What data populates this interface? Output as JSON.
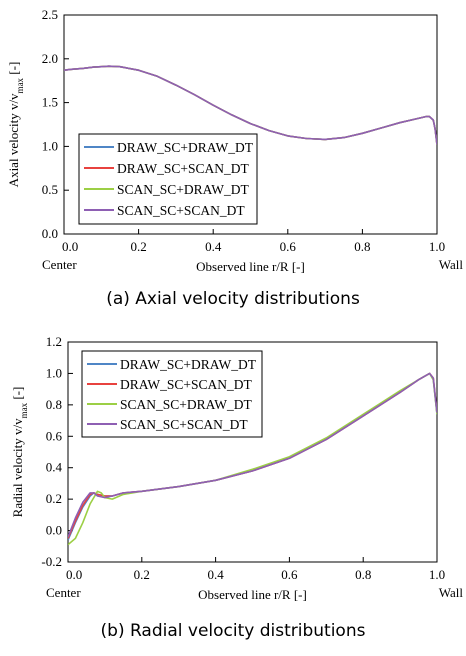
{
  "chart_data": [
    {
      "type": "line",
      "caption": "(a) Axial velocity distributions",
      "xlabel": "Observed line r/R [-]",
      "ylabel": "Axial velocity v/v",
      "ylabel_sub": "max",
      "ylabel_unit": " [-]",
      "x_end_labels": [
        "Center",
        "Wall"
      ],
      "xlim": [
        0,
        1
      ],
      "ylim": [
        0,
        2.5
      ],
      "xticks": [
        "0.0",
        "0.2",
        "0.4",
        "0.6",
        "0.8",
        "1.0"
      ],
      "yticks": [
        "0.0",
        "0.5",
        "1.0",
        "1.5",
        "2.0",
        "2.5"
      ],
      "grid": false,
      "legend_position": "bottom-left",
      "x": [
        0,
        0.02,
        0.05,
        0.08,
        0.1,
        0.12,
        0.15,
        0.2,
        0.25,
        0.3,
        0.35,
        0.4,
        0.45,
        0.5,
        0.55,
        0.6,
        0.65,
        0.7,
        0.75,
        0.8,
        0.85,
        0.9,
        0.95,
        0.97,
        0.98,
        0.99,
        0.995,
        1.0
      ],
      "series": [
        {
          "name": "DRAW_SC+DRAW_DT",
          "color": "#4f86c6",
          "values": [
            1.87,
            1.88,
            1.89,
            1.905,
            1.91,
            1.915,
            1.91,
            1.87,
            1.8,
            1.7,
            1.59,
            1.47,
            1.36,
            1.26,
            1.18,
            1.12,
            1.09,
            1.08,
            1.1,
            1.15,
            1.21,
            1.27,
            1.32,
            1.34,
            1.34,
            1.3,
            1.2,
            1.02
          ]
        },
        {
          "name": "DRAW_SC+SCAN_DT",
          "color": "#e8423f",
          "values": [
            1.87,
            1.88,
            1.89,
            1.905,
            1.91,
            1.915,
            1.91,
            1.87,
            1.8,
            1.7,
            1.59,
            1.47,
            1.36,
            1.26,
            1.18,
            1.12,
            1.09,
            1.08,
            1.1,
            1.15,
            1.21,
            1.27,
            1.32,
            1.34,
            1.34,
            1.3,
            1.2,
            1.02
          ]
        },
        {
          "name": "SCAN_SC+DRAW_DT",
          "color": "#9ccf45",
          "values": [
            1.87,
            1.88,
            1.89,
            1.905,
            1.91,
            1.915,
            1.91,
            1.87,
            1.8,
            1.7,
            1.59,
            1.47,
            1.36,
            1.26,
            1.18,
            1.12,
            1.09,
            1.08,
            1.1,
            1.15,
            1.21,
            1.27,
            1.32,
            1.34,
            1.34,
            1.3,
            1.2,
            1.02
          ]
        },
        {
          "name": "SCAN_SC+SCAN_DT",
          "color": "#8e5fb3",
          "values": [
            1.87,
            1.88,
            1.89,
            1.905,
            1.91,
            1.915,
            1.91,
            1.87,
            1.8,
            1.7,
            1.59,
            1.47,
            1.36,
            1.26,
            1.18,
            1.12,
            1.09,
            1.08,
            1.1,
            1.15,
            1.21,
            1.27,
            1.32,
            1.34,
            1.34,
            1.3,
            1.2,
            1.02
          ]
        }
      ]
    },
    {
      "type": "line",
      "caption": "(b) Radial velocity distributions",
      "xlabel": "Observed line r/R [-]",
      "ylabel": "Radial velocity v/v",
      "ylabel_sub": "max",
      "ylabel_unit": " [-]",
      "x_end_labels": [
        "Center",
        "Wall"
      ],
      "xlim": [
        0,
        1
      ],
      "ylim": [
        -0.2,
        1.2
      ],
      "xticks": [
        "0.0",
        "0.2",
        "0.4",
        "0.6",
        "0.8",
        "1.0"
      ],
      "yticks": [
        "-0.2",
        "0.0",
        "0.2",
        "0.4",
        "0.6",
        "0.8",
        "1.0",
        "1.2"
      ],
      "grid": false,
      "legend_position": "top-left",
      "series": [
        {
          "name": "DRAW_SC+DRAW_DT",
          "color": "#4f86c6",
          "x": [
            0,
            0.02,
            0.04,
            0.06,
            0.07,
            0.08,
            0.1,
            0.12,
            0.15,
            0.2,
            0.3,
            0.4,
            0.5,
            0.6,
            0.7,
            0.8,
            0.9,
            0.95,
            0.98,
            0.99,
            1.0
          ],
          "values": [
            -0.06,
            0.05,
            0.15,
            0.22,
            0.24,
            0.23,
            0.22,
            0.22,
            0.24,
            0.25,
            0.28,
            0.32,
            0.38,
            0.46,
            0.58,
            0.73,
            0.88,
            0.96,
            1.0,
            0.96,
            0.74
          ]
        },
        {
          "name": "DRAW_SC+SCAN_DT",
          "color": "#e8423f",
          "x": [
            0,
            0.02,
            0.04,
            0.06,
            0.07,
            0.08,
            0.1,
            0.12,
            0.15,
            0.2,
            0.3,
            0.4,
            0.5,
            0.6,
            0.7,
            0.8,
            0.9,
            0.95,
            0.98,
            0.99,
            1.0
          ],
          "values": [
            -0.05,
            0.06,
            0.16,
            0.23,
            0.24,
            0.23,
            0.22,
            0.22,
            0.24,
            0.25,
            0.28,
            0.32,
            0.38,
            0.46,
            0.58,
            0.73,
            0.88,
            0.96,
            1.0,
            0.97,
            0.75
          ]
        },
        {
          "name": "SCAN_SC+DRAW_DT",
          "color": "#9ccf45",
          "x": [
            0,
            0.02,
            0.04,
            0.06,
            0.08,
            0.09,
            0.1,
            0.12,
            0.15,
            0.2,
            0.3,
            0.4,
            0.5,
            0.6,
            0.7,
            0.8,
            0.9,
            0.95,
            0.98,
            0.99,
            1.0
          ],
          "values": [
            -0.09,
            -0.05,
            0.05,
            0.17,
            0.25,
            0.24,
            0.21,
            0.2,
            0.23,
            0.25,
            0.28,
            0.32,
            0.39,
            0.47,
            0.59,
            0.74,
            0.89,
            0.96,
            1.0,
            0.96,
            0.74
          ]
        },
        {
          "name": "SCAN_SC+SCAN_DT",
          "color": "#8e5fb3",
          "x": [
            0,
            0.02,
            0.04,
            0.06,
            0.07,
            0.08,
            0.1,
            0.12,
            0.15,
            0.2,
            0.3,
            0.4,
            0.5,
            0.6,
            0.7,
            0.8,
            0.9,
            0.95,
            0.98,
            0.99,
            1.0
          ],
          "values": [
            -0.04,
            0.08,
            0.18,
            0.24,
            0.24,
            0.22,
            0.21,
            0.22,
            0.24,
            0.25,
            0.28,
            0.32,
            0.38,
            0.46,
            0.58,
            0.73,
            0.88,
            0.96,
            1.0,
            0.97,
            0.75
          ]
        }
      ]
    }
  ]
}
